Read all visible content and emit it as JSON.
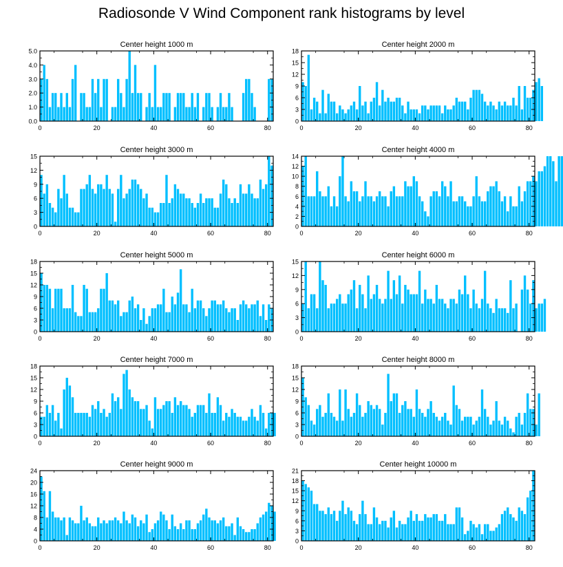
{
  "title": "Radiosonde V Wind Component rank histograms by level",
  "bar_color": "#00bfff",
  "chart_data": [
    {
      "type": "bar",
      "title": "Center height 1000 m",
      "xlim": [
        0,
        82
      ],
      "ylim": [
        0,
        5
      ],
      "yticks": [
        {
          "v": 0,
          "t": "0.0"
        },
        {
          "v": 1,
          "t": "1.0"
        },
        {
          "v": 2,
          "t": "2.0"
        },
        {
          "v": 3,
          "t": "3.0"
        },
        {
          "v": 4,
          "t": "4.0"
        },
        {
          "v": 5,
          "t": "5.0"
        }
      ],
      "xticks": [
        0,
        20,
        40,
        60,
        80
      ],
      "values": [
        3,
        4,
        3,
        1,
        2,
        2,
        1,
        2,
        1,
        2,
        1,
        3,
        4,
        0,
        2,
        2,
        1,
        1,
        3,
        2,
        3,
        1,
        3,
        3,
        0,
        1,
        1,
        3,
        2,
        1,
        3,
        5,
        2,
        4,
        2,
        2,
        0,
        1,
        2,
        1,
        4,
        1,
        1,
        2,
        2,
        2,
        0,
        1,
        2,
        2,
        2,
        1,
        1,
        2,
        1,
        2,
        0,
        1,
        2,
        2,
        1,
        0,
        1,
        2,
        1,
        1,
        2,
        1,
        0,
        0,
        0,
        2,
        3,
        3,
        2,
        1,
        0,
        0,
        0,
        0,
        3,
        3
      ]
    },
    {
      "type": "bar",
      "title": "Center height 2000 m",
      "xlim": [
        0,
        82
      ],
      "ylim": [
        0,
        18
      ],
      "yticks": [
        {
          "v": 0,
          "t": "0"
        },
        {
          "v": 3,
          "t": "3"
        },
        {
          "v": 6,
          "t": "6"
        },
        {
          "v": 9,
          "t": "9"
        },
        {
          "v": 12,
          "t": "12"
        },
        {
          "v": 15,
          "t": "15"
        },
        {
          "v": 18,
          "t": "18"
        }
      ],
      "xticks": [
        0,
        20,
        40,
        60,
        80
      ],
      "values": [
        10,
        9,
        17,
        3,
        6,
        5,
        2,
        8,
        2,
        7,
        5,
        5,
        2,
        4,
        3,
        2,
        3,
        4,
        5,
        3,
        9,
        4,
        5,
        2,
        5,
        6,
        10,
        4,
        8,
        5,
        6,
        5,
        5,
        6,
        6,
        4,
        2,
        5,
        3,
        3,
        3,
        2,
        4,
        4,
        3,
        4,
        4,
        4,
        4,
        2,
        4,
        3,
        3,
        4,
        6,
        5,
        5,
        5,
        3,
        6,
        8,
        8,
        8,
        7,
        5,
        4,
        5,
        4,
        3,
        5,
        4,
        5,
        4,
        4,
        6,
        4,
        9,
        3,
        9,
        6,
        6,
        8,
        10,
        11,
        9
      ]
    },
    {
      "type": "bar",
      "title": "Center height 3000 m",
      "xlim": [
        0,
        82
      ],
      "ylim": [
        0,
        15
      ],
      "yticks": [
        {
          "v": 0,
          "t": "0"
        },
        {
          "v": 3,
          "t": "3"
        },
        {
          "v": 6,
          "t": "6"
        },
        {
          "v": 9,
          "t": "9"
        },
        {
          "v": 12,
          "t": "12"
        },
        {
          "v": 15,
          "t": "15"
        }
      ],
      "xticks": [
        0,
        20,
        40,
        60,
        80
      ],
      "values": [
        11,
        7,
        9,
        5,
        4,
        3,
        8,
        6,
        11,
        7,
        4,
        4,
        3,
        3,
        8,
        8,
        9,
        11,
        8,
        7,
        9,
        9,
        8,
        11,
        8,
        7,
        1,
        8,
        11,
        6,
        7,
        8,
        10,
        10,
        9,
        8,
        6,
        7,
        4,
        4,
        3,
        3,
        5,
        5,
        11,
        5,
        6,
        9,
        8,
        7,
        7,
        6,
        6,
        5,
        4,
        5,
        7,
        5,
        6,
        6,
        6,
        4,
        4,
        7,
        10,
        9,
        6,
        5,
        6,
        5,
        9,
        7,
        7,
        9,
        7,
        6,
        6,
        10,
        8,
        9,
        15,
        13
      ]
    },
    {
      "type": "bar",
      "title": "Center height 4000 m",
      "xlim": [
        0,
        82
      ],
      "ylim": [
        0,
        14
      ],
      "yticks": [
        {
          "v": 0,
          "t": "0"
        },
        {
          "v": 2,
          "t": "2"
        },
        {
          "v": 4,
          "t": "4"
        },
        {
          "v": 6,
          "t": "6"
        },
        {
          "v": 8,
          "t": "8"
        },
        {
          "v": 10,
          "t": "10"
        },
        {
          "v": 12,
          "t": "12"
        },
        {
          "v": 14,
          "t": "14"
        }
      ],
      "xticks": [
        0,
        20,
        40,
        60,
        80
      ],
      "values": [
        12,
        14,
        6,
        6,
        6,
        11,
        7,
        6,
        6,
        8,
        4,
        6,
        4,
        10,
        14,
        6,
        5,
        9,
        7,
        7,
        5,
        6,
        9,
        6,
        6,
        5,
        6,
        7,
        6,
        6,
        4,
        7,
        8,
        6,
        6,
        6,
        9,
        8,
        8,
        10,
        9,
        6,
        5,
        3,
        2,
        6,
        7,
        7,
        6,
        9,
        8,
        6,
        9,
        5,
        5,
        6,
        6,
        5,
        4,
        4,
        6,
        10,
        6,
        5,
        5,
        7,
        8,
        8,
        9,
        7,
        5,
        6,
        3,
        6,
        4,
        4,
        8,
        5,
        7,
        9,
        9,
        10,
        9,
        11,
        11,
        12,
        14,
        14,
        13,
        9,
        14,
        14
      ]
    },
    {
      "type": "bar",
      "title": "Center height 5000 m",
      "xlim": [
        0,
        82
      ],
      "ylim": [
        0,
        18
      ],
      "yticks": [
        {
          "v": 0,
          "t": "0"
        },
        {
          "v": 3,
          "t": "3"
        },
        {
          "v": 6,
          "t": "6"
        },
        {
          "v": 9,
          "t": "9"
        },
        {
          "v": 12,
          "t": "12"
        },
        {
          "v": 15,
          "t": "15"
        },
        {
          "v": 18,
          "t": "18"
        }
      ],
      "xticks": [
        0,
        20,
        40,
        60,
        80
      ],
      "values": [
        15,
        12,
        12,
        11,
        6,
        11,
        11,
        11,
        6,
        6,
        6,
        12,
        5,
        4,
        4,
        12,
        11,
        5,
        5,
        5,
        6,
        11,
        11,
        15,
        8,
        8,
        7,
        8,
        4,
        5,
        5,
        8,
        9,
        6,
        7,
        3,
        6,
        2,
        4,
        6,
        6,
        7,
        7,
        11,
        5,
        5,
        9,
        7,
        10,
        16,
        7,
        7,
        5,
        11,
        6,
        8,
        8,
        6,
        4,
        6,
        8,
        8,
        7,
        7,
        8,
        6,
        5,
        6,
        6,
        3,
        7,
        8,
        7,
        6,
        7,
        7,
        8,
        4,
        7,
        3,
        7,
        6
      ]
    },
    {
      "type": "bar",
      "title": "Center height 6000 m",
      "xlim": [
        0,
        82
      ],
      "ylim": [
        0,
        15
      ],
      "yticks": [
        {
          "v": 0,
          "t": "0"
        },
        {
          "v": 3,
          "t": "3"
        },
        {
          "v": 6,
          "t": "6"
        },
        {
          "v": 9,
          "t": "9"
        },
        {
          "v": 12,
          "t": "12"
        },
        {
          "v": 15,
          "t": "15"
        }
      ],
      "xticks": [
        0,
        20,
        40,
        60,
        80
      ],
      "values": [
        6,
        15,
        5,
        8,
        8,
        5,
        15,
        11,
        10,
        5,
        6,
        6,
        7,
        8,
        6,
        6,
        8,
        9,
        11,
        5,
        10,
        8,
        5,
        12,
        7,
        8,
        10,
        7,
        6,
        7,
        13,
        7,
        11,
        8,
        12,
        6,
        10,
        9,
        8,
        8,
        8,
        13,
        6,
        9,
        7,
        7,
        6,
        10,
        7,
        7,
        6,
        5,
        7,
        7,
        6,
        9,
        8,
        12,
        8,
        5,
        9,
        6,
        5,
        7,
        13,
        6,
        5,
        4,
        7,
        5,
        5,
        5,
        4,
        11,
        5,
        6,
        0,
        9,
        12,
        9,
        6,
        11,
        5,
        6,
        6,
        7
      ]
    },
    {
      "type": "bar",
      "title": "Center height 7000 m",
      "xlim": [
        0,
        82
      ],
      "ylim": [
        0,
        18
      ],
      "yticks": [
        {
          "v": 0,
          "t": "0"
        },
        {
          "v": 3,
          "t": "3"
        },
        {
          "v": 6,
          "t": "6"
        },
        {
          "v": 9,
          "t": "9"
        },
        {
          "v": 12,
          "t": "12"
        },
        {
          "v": 15,
          "t": "15"
        },
        {
          "v": 18,
          "t": "18"
        }
      ],
      "xticks": [
        0,
        20,
        40,
        60,
        80
      ],
      "values": [
        5,
        5,
        8,
        6,
        8,
        4,
        6,
        2,
        12,
        15,
        13,
        10,
        6,
        6,
        6,
        6,
        6,
        5,
        8,
        7,
        9,
        6,
        7,
        5,
        6,
        11,
        9,
        10,
        7,
        16,
        17,
        12,
        10,
        9,
        9,
        7,
        7,
        8,
        4,
        2,
        10,
        7,
        7,
        8,
        9,
        9,
        6,
        10,
        8,
        9,
        8,
        8,
        7,
        5,
        6,
        8,
        8,
        8,
        6,
        11,
        6,
        6,
        10,
        8,
        4,
        6,
        5,
        7,
        6,
        5,
        5,
        4,
        4,
        5,
        7,
        5,
        4,
        8,
        6,
        2,
        6,
        6,
        6
      ]
    },
    {
      "type": "bar",
      "title": "Center height 8000 m",
      "xlim": [
        0,
        82
      ],
      "ylim": [
        0,
        18
      ],
      "yticks": [
        {
          "v": 0,
          "t": "0"
        },
        {
          "v": 3,
          "t": "3"
        },
        {
          "v": 6,
          "t": "6"
        },
        {
          "v": 9,
          "t": "9"
        },
        {
          "v": 12,
          "t": "12"
        },
        {
          "v": 15,
          "t": "15"
        },
        {
          "v": 18,
          "t": "18"
        }
      ],
      "xticks": [
        0,
        20,
        40,
        60,
        80
      ],
      "values": [
        15,
        10,
        8,
        4,
        3,
        7,
        8,
        5,
        6,
        11,
        6,
        5,
        4,
        12,
        4,
        12,
        7,
        5,
        6,
        11,
        8,
        5,
        6,
        9,
        8,
        7,
        8,
        7,
        3,
        6,
        16,
        9,
        11,
        11,
        6,
        8,
        9,
        7,
        7,
        5,
        12,
        7,
        6,
        5,
        7,
        9,
        6,
        5,
        4,
        5,
        6,
        4,
        3,
        13,
        8,
        7,
        4,
        5,
        5,
        5,
        3,
        4,
        5,
        12,
        7,
        5,
        3,
        4,
        9,
        4,
        3,
        5,
        4,
        2,
        1,
        5,
        6,
        3,
        6,
        11,
        7,
        7,
        3,
        11
      ]
    },
    {
      "type": "bar",
      "title": "Center height 9000 m",
      "xlim": [
        0,
        82
      ],
      "ylim": [
        0,
        24
      ],
      "yticks": [
        {
          "v": 0,
          "t": "0"
        },
        {
          "v": 4,
          "t": "4"
        },
        {
          "v": 8,
          "t": "8"
        },
        {
          "v": 12,
          "t": "12"
        },
        {
          "v": 16,
          "t": "16"
        },
        {
          "v": 20,
          "t": "20"
        },
        {
          "v": 24,
          "t": "24"
        }
      ],
      "xticks": [
        0,
        20,
        40,
        60,
        80
      ],
      "values": [
        22,
        17,
        8,
        17,
        10,
        8,
        8,
        7,
        8,
        2,
        8,
        7,
        6,
        6,
        12,
        7,
        8,
        6,
        5,
        5,
        8,
        6,
        7,
        6,
        7,
        7,
        8,
        7,
        6,
        10,
        7,
        6,
        9,
        8,
        5,
        7,
        6,
        9,
        3,
        4,
        6,
        7,
        10,
        9,
        7,
        4,
        9,
        5,
        4,
        6,
        4,
        7,
        7,
        4,
        4,
        6,
        7,
        9,
        11,
        8,
        7,
        7,
        6,
        7,
        8,
        5,
        5,
        6,
        2,
        8,
        5,
        4,
        3,
        3,
        4,
        4,
        6,
        8,
        9,
        10,
        13,
        12,
        10
      ]
    },
    {
      "type": "bar",
      "title": "Center height 10000 m",
      "xlim": [
        0,
        82
      ],
      "ylim": [
        0,
        21
      ],
      "yticks": [
        {
          "v": 0,
          "t": "0"
        },
        {
          "v": 3,
          "t": "3"
        },
        {
          "v": 6,
          "t": "6"
        },
        {
          "v": 9,
          "t": "9"
        },
        {
          "v": 12,
          "t": "12"
        },
        {
          "v": 15,
          "t": "15"
        },
        {
          "v": 18,
          "t": "18"
        },
        {
          "v": 21,
          "t": "21"
        }
      ],
      "xticks": [
        0,
        20,
        40,
        60,
        80
      ],
      "values": [
        18,
        17,
        16,
        15,
        11,
        11,
        9,
        9,
        8,
        10,
        8,
        9,
        6,
        9,
        12,
        8,
        10,
        9,
        6,
        5,
        8,
        12,
        8,
        5,
        5,
        10,
        7,
        5,
        6,
        6,
        4,
        7,
        9,
        4,
        6,
        5,
        5,
        7,
        9,
        6,
        8,
        6,
        6,
        8,
        7,
        7,
        8,
        8,
        6,
        6,
        8,
        5,
        5,
        5,
        10,
        10,
        7,
        2,
        3,
        6,
        5,
        4,
        5,
        2,
        5,
        5,
        3,
        3,
        4,
        5,
        8,
        9,
        10,
        8,
        7,
        6,
        10,
        9,
        8,
        13,
        15,
        21
      ]
    }
  ]
}
